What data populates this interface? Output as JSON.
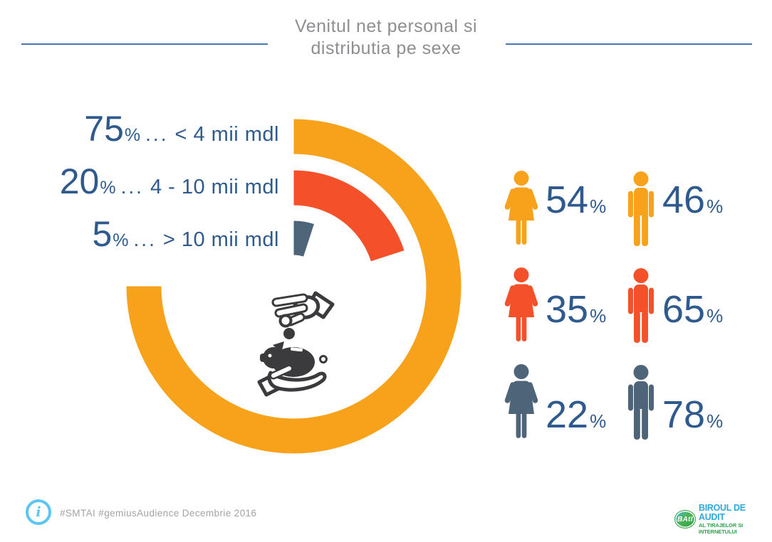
{
  "title": {
    "line1": "Venitul net personal si",
    "line2": "distributia pe sexe"
  },
  "labels": {
    "percent_sign": "%",
    "separator": "..."
  },
  "chart_data": {
    "type": "donut",
    "title": "Venitul net personal si distributia pe sexe",
    "unit": "%",
    "direction": "clockwise",
    "start_angle_deg": 0,
    "legend_position": "left",
    "center_icon": "piggy-bank-hands",
    "segments": [
      {
        "value": 75,
        "label": "< 4 mii mdl",
        "color": "#F7A21A",
        "female_pct": 54,
        "male_pct": 46
      },
      {
        "value": 20,
        "label": "4 - 10 mii mdl",
        "color": "#F4512A",
        "female_pct": 35,
        "male_pct": 65
      },
      {
        "value": 5,
        "label": "> 10 mii mdl",
        "color": "#4E6478",
        "female_pct": 22,
        "male_pct": 78
      }
    ]
  },
  "footer": {
    "hashtags": "#SMTAI #gemiusAudience Decembrie 2016",
    "info_icon_glyph": "i",
    "logo": {
      "badge_text": "BAtI",
      "line1": "BIROUL DE AUDIT",
      "line2": "AL TIRAJELOR SI INTERNETULUI"
    }
  },
  "colors": {
    "accent_blue_text": "#2F5A8E",
    "title_gray": "#8F8F93",
    "rule_blue": "#4B78AC",
    "info_blue": "#5BC6F3",
    "logo_blue": "#2FA9DC",
    "logo_green": "#2EA24C",
    "icon_dark": "#3B3B3D"
  }
}
